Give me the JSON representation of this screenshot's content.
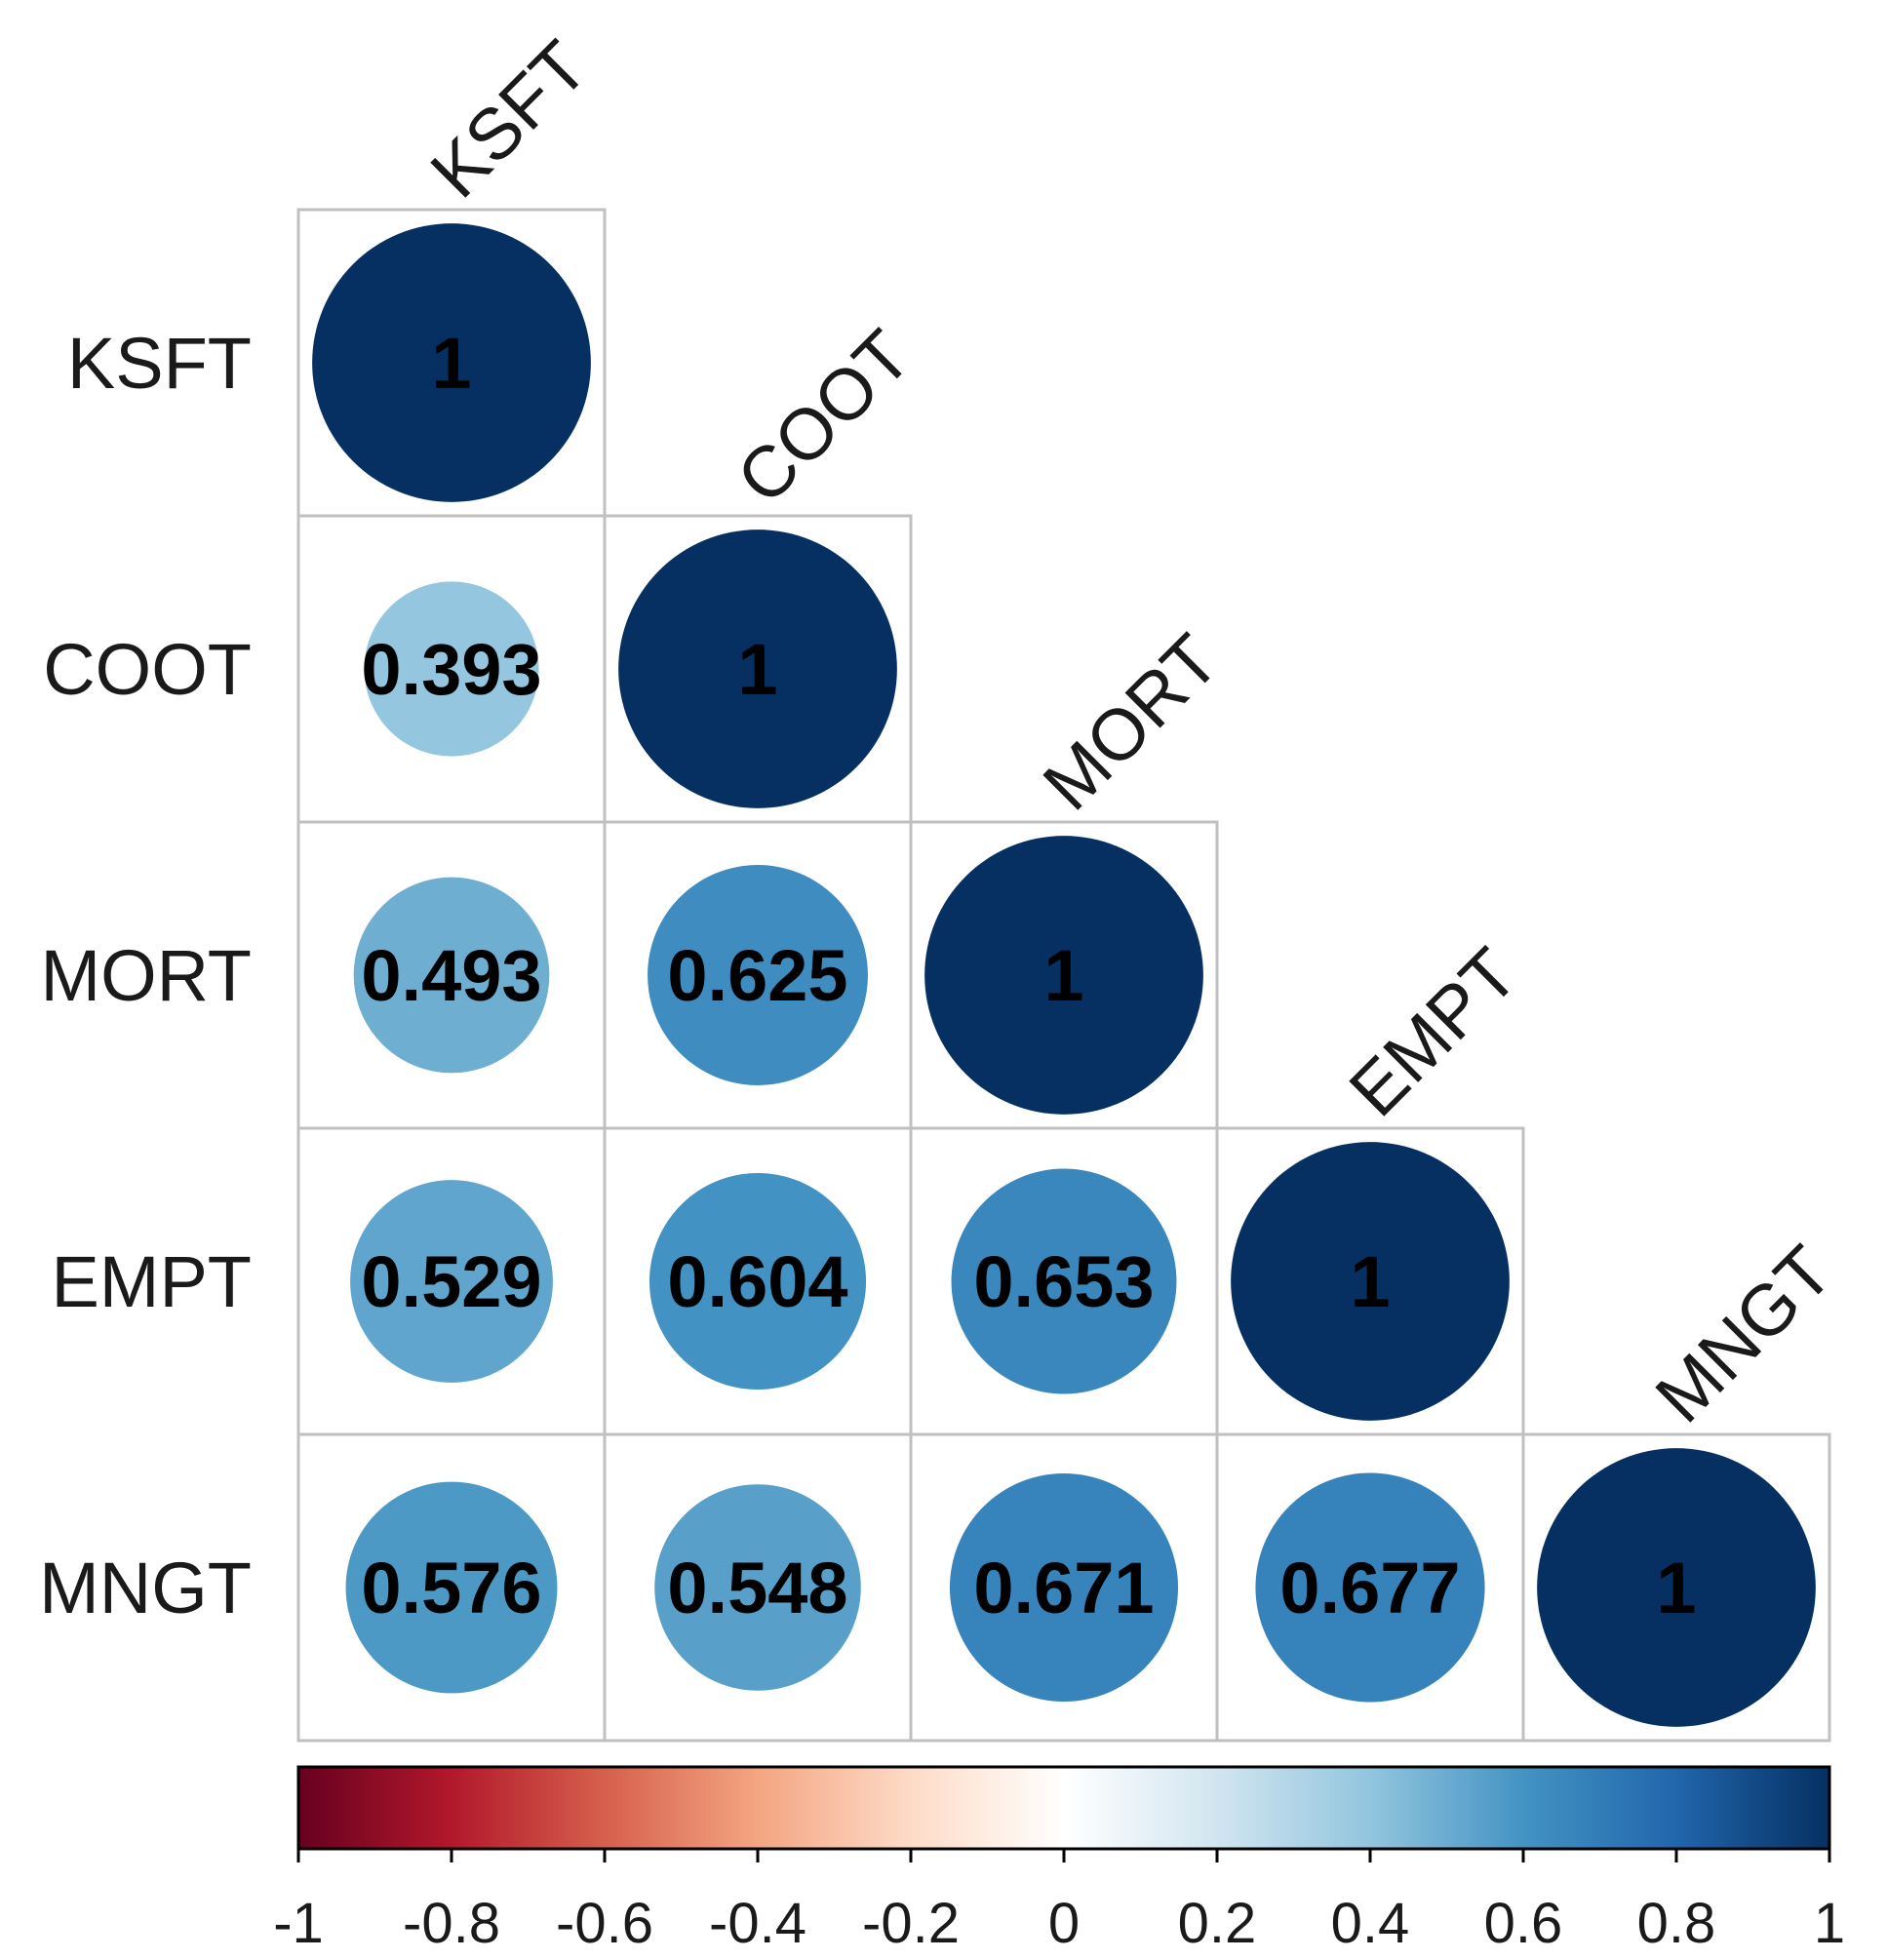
{
  "chart_data": {
    "type": "heatmap",
    "subtype": "correlation-lower-triangle-circles",
    "variables": [
      "KSFT",
      "COOT",
      "MORT",
      "EMPT",
      "MNGT"
    ],
    "matrix": [
      [
        1,
        null,
        null,
        null,
        null
      ],
      [
        0.393,
        1,
        null,
        null,
        null
      ],
      [
        0.493,
        0.625,
        1,
        null,
        null
      ],
      [
        0.529,
        0.604,
        0.653,
        1,
        null
      ],
      [
        0.576,
        0.548,
        0.671,
        0.677,
        1
      ]
    ],
    "value_labels": [
      [
        "1",
        "",
        "",
        "",
        ""
      ],
      [
        "0.393",
        "1",
        "",
        "",
        ""
      ],
      [
        "0.493",
        "0.625",
        "1",
        "",
        ""
      ],
      [
        "0.529",
        "0.604",
        "0.653",
        "1",
        ""
      ],
      [
        "0.576",
        "0.548",
        "0.671",
        "0.677",
        "1"
      ]
    ],
    "colorbar": {
      "range": [
        -1,
        1
      ],
      "ticks": [
        "-1",
        "-0.8",
        "-0.6",
        "-0.4",
        "-0.2",
        "0",
        "0.2",
        "0.4",
        "0.6",
        "0.8",
        "1"
      ],
      "tick_values": [
        -1,
        -0.8,
        -0.6,
        -0.4,
        -0.2,
        0,
        0.2,
        0.4,
        0.6,
        0.8,
        1
      ],
      "colors": [
        "#67001f",
        "#b2182b",
        "#d6604d",
        "#f4a582",
        "#fddbc7",
        "#ffffff",
        "#d1e5f0",
        "#92c5de",
        "#4393c3",
        "#2166ac",
        "#053061"
      ]
    },
    "grid_color": "#c0c0c0"
  }
}
